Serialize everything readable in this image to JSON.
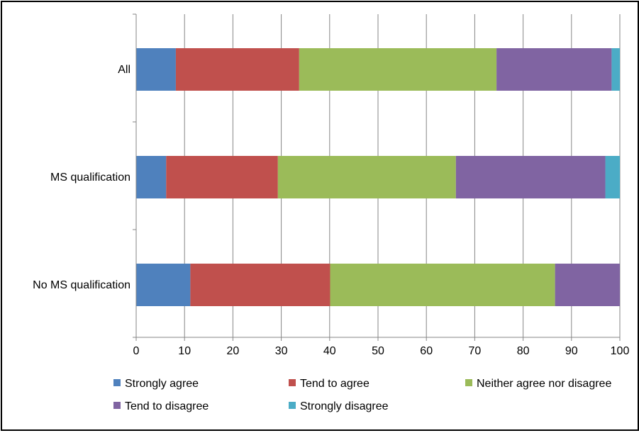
{
  "chart_data": {
    "type": "bar",
    "orientation": "horizontal",
    "stacked": true,
    "title": "",
    "xlabel": "",
    "ylabel": "",
    "categories": [
      "All",
      "MS qualification",
      "No MS qualification"
    ],
    "xlim": [
      0,
      100
    ],
    "xticks": [
      0,
      10,
      20,
      30,
      40,
      50,
      60,
      70,
      80,
      90,
      100
    ],
    "grid": "vertical",
    "legend_position": "bottom",
    "series": [
      {
        "name": "Strongly agree",
        "color": "#4F81BD",
        "values": [
          8.2,
          6.2,
          11.2
        ]
      },
      {
        "name": "Tend to agree",
        "color": "#C0504D",
        "values": [
          25.5,
          23.1,
          28.9
        ]
      },
      {
        "name": "Neither agree nor disagree",
        "color": "#9BBB59",
        "values": [
          40.8,
          36.8,
          46.5
        ]
      },
      {
        "name": "Tend to disagree",
        "color": "#8064A2",
        "values": [
          23.8,
          30.9,
          13.4
        ]
      },
      {
        "name": "Strongly disagree",
        "color": "#4BACC6",
        "values": [
          1.7,
          3.0,
          0.0
        ]
      }
    ]
  }
}
